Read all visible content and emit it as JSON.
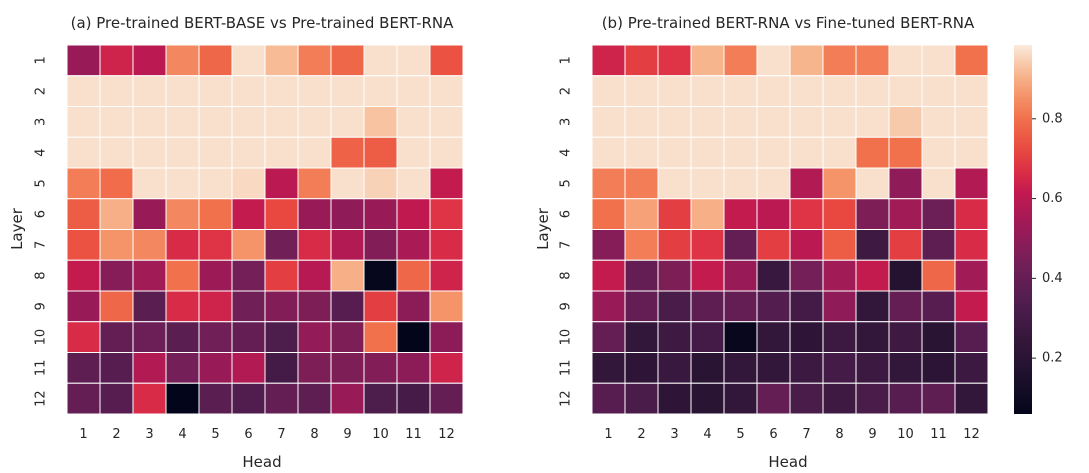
{
  "chart_data": [
    {
      "type": "heatmap",
      "title": "(a) Pre-trained BERT-BASE vs Pre-trained BERT-RNA",
      "xlabel": "Head",
      "ylabel": "Layer",
      "x_categories": [
        "1",
        "2",
        "3",
        "4",
        "5",
        "6",
        "7",
        "8",
        "9",
        "10",
        "11",
        "12"
      ],
      "y_categories": [
        "1",
        "2",
        "3",
        "4",
        "5",
        "6",
        "7",
        "8",
        "9",
        "10",
        "11",
        "12"
      ],
      "values": [
        [
          0.52,
          0.64,
          0.6,
          0.84,
          0.78,
          0.97,
          0.92,
          0.82,
          0.78,
          0.97,
          0.97,
          0.74
        ],
        [
          0.97,
          0.97,
          0.97,
          0.97,
          0.97,
          0.97,
          0.97,
          0.97,
          0.97,
          0.97,
          0.97,
          0.97
        ],
        [
          0.97,
          0.97,
          0.97,
          0.97,
          0.97,
          0.97,
          0.97,
          0.97,
          0.97,
          0.93,
          0.97,
          0.97
        ],
        [
          0.97,
          0.97,
          0.97,
          0.97,
          0.97,
          0.97,
          0.97,
          0.97,
          0.77,
          0.76,
          0.97,
          0.97
        ],
        [
          0.82,
          0.79,
          0.97,
          0.97,
          0.97,
          0.96,
          0.6,
          0.82,
          0.97,
          0.95,
          0.97,
          0.62
        ],
        [
          0.76,
          0.9,
          0.52,
          0.84,
          0.8,
          0.62,
          0.72,
          0.52,
          0.5,
          0.52,
          0.61,
          0.68
        ],
        [
          0.74,
          0.86,
          0.84,
          0.66,
          0.68,
          0.86,
          0.43,
          0.66,
          0.58,
          0.47,
          0.56,
          0.66
        ],
        [
          0.62,
          0.48,
          0.54,
          0.8,
          0.53,
          0.44,
          0.7,
          0.59,
          0.9,
          0.07,
          0.78,
          0.64
        ],
        [
          0.52,
          0.78,
          0.37,
          0.66,
          0.64,
          0.43,
          0.47,
          0.46,
          0.36,
          0.7,
          0.49,
          0.86
        ],
        [
          0.66,
          0.4,
          0.42,
          0.37,
          0.43,
          0.4,
          0.33,
          0.51,
          0.46,
          0.8,
          0.06,
          0.49
        ],
        [
          0.38,
          0.36,
          0.58,
          0.44,
          0.52,
          0.58,
          0.3,
          0.46,
          0.46,
          0.47,
          0.49,
          0.64
        ],
        [
          0.4,
          0.36,
          0.66,
          0.06,
          0.37,
          0.34,
          0.4,
          0.38,
          0.52,
          0.33,
          0.31,
          0.4
        ]
      ]
    },
    {
      "type": "heatmap",
      "title": "(b) Pre-trained BERT-RNA vs Fine-tuned BERT-RNA",
      "xlabel": "Head",
      "ylabel": "Layer",
      "x_categories": [
        "1",
        "2",
        "3",
        "4",
        "5",
        "6",
        "7",
        "8",
        "9",
        "10",
        "11",
        "12"
      ],
      "y_categories": [
        "1",
        "2",
        "3",
        "4",
        "5",
        "6",
        "7",
        "8",
        "9",
        "10",
        "11",
        "12"
      ],
      "values": [
        [
          0.64,
          0.7,
          0.68,
          0.91,
          0.82,
          0.97,
          0.91,
          0.82,
          0.82,
          0.97,
          0.97,
          0.8
        ],
        [
          0.97,
          0.97,
          0.97,
          0.97,
          0.97,
          0.97,
          0.97,
          0.97,
          0.97,
          0.97,
          0.97,
          0.97
        ],
        [
          0.97,
          0.97,
          0.97,
          0.97,
          0.97,
          0.97,
          0.97,
          0.97,
          0.97,
          0.94,
          0.97,
          0.97
        ],
        [
          0.97,
          0.97,
          0.97,
          0.97,
          0.97,
          0.97,
          0.97,
          0.97,
          0.8,
          0.8,
          0.97,
          0.97
        ],
        [
          0.82,
          0.82,
          0.97,
          0.97,
          0.97,
          0.97,
          0.58,
          0.86,
          0.97,
          0.5,
          0.97,
          0.58
        ],
        [
          0.8,
          0.88,
          0.7,
          0.9,
          0.62,
          0.6,
          0.68,
          0.72,
          0.46,
          0.54,
          0.42,
          0.66
        ],
        [
          0.48,
          0.82,
          0.7,
          0.68,
          0.4,
          0.7,
          0.6,
          0.76,
          0.28,
          0.7,
          0.38,
          0.66
        ],
        [
          0.62,
          0.4,
          0.46,
          0.62,
          0.52,
          0.26,
          0.44,
          0.54,
          0.62,
          0.18,
          0.78,
          0.54
        ],
        [
          0.52,
          0.4,
          0.32,
          0.38,
          0.4,
          0.35,
          0.3,
          0.5,
          0.24,
          0.4,
          0.36,
          0.62
        ],
        [
          0.4,
          0.24,
          0.28,
          0.3,
          0.08,
          0.24,
          0.22,
          0.27,
          0.24,
          0.28,
          0.2,
          0.36
        ],
        [
          0.24,
          0.22,
          0.26,
          0.2,
          0.24,
          0.24,
          0.27,
          0.3,
          0.27,
          0.24,
          0.21,
          0.27
        ],
        [
          0.36,
          0.32,
          0.22,
          0.2,
          0.24,
          0.4,
          0.32,
          0.28,
          0.32,
          0.36,
          0.38,
          0.24
        ]
      ]
    }
  ],
  "colorbar": {
    "colormap": "rocket",
    "min": 0.06,
    "max": 0.985,
    "ticks": [
      0.2,
      0.4,
      0.6,
      0.8
    ],
    "tick_labels": [
      "0.2",
      "0.4",
      "0.6",
      "0.8"
    ]
  }
}
